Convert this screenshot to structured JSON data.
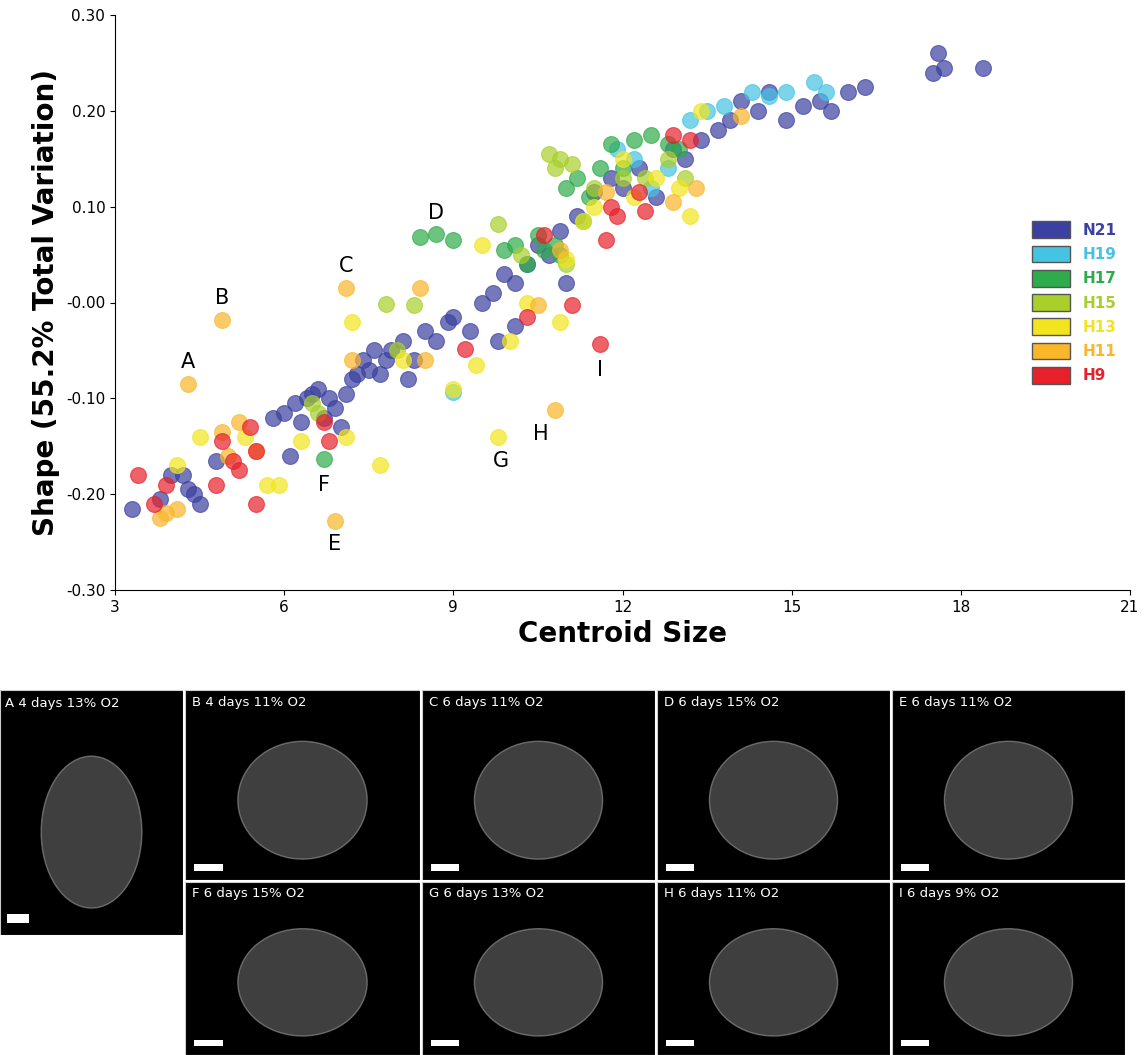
{
  "chart_data": {
    "type": "scatter",
    "x_label": "Centroid Size",
    "y_label": "Shape (55.2% Total Variation)",
    "xlim": [
      3,
      21
    ],
    "xticks": [
      3,
      6,
      9,
      12,
      15,
      18,
      21
    ],
    "ylim": [
      -0.3,
      0.3
    ],
    "yticks": [
      {
        "value": -0.3,
        "label": "-0.30"
      },
      {
        "value": -0.2,
        "label": "-0.20"
      },
      {
        "value": -0.1,
        "label": "-0.10"
      },
      {
        "value": 0.0,
        "label": "-0.00"
      },
      {
        "value": 0.1,
        "label": "0.10"
      },
      {
        "value": 0.2,
        "label": "0.20"
      },
      {
        "value": 0.3,
        "label": "0.30"
      }
    ],
    "legend": "center right",
    "marker": "o",
    "series": [
      {
        "name": "N21",
        "color": "#3b41a0",
        "x": [
          3.3,
          3.8,
          4.0,
          4.2,
          4.3,
          4.5,
          4.4,
          4.8,
          5.8,
          6.0,
          6.1,
          6.2,
          6.4,
          6.5,
          6.6,
          6.7,
          6.8,
          6.9,
          7.0,
          7.1,
          7.2,
          7.3,
          7.4,
          7.5,
          7.6,
          7.8,
          7.9,
          8.1,
          8.2,
          8.3,
          8.5,
          8.7,
          8.9,
          9.0,
          9.3,
          9.5,
          9.7,
          9.9,
          10.1,
          10.3,
          10.5,
          10.7,
          10.9,
          11.0,
          11.2,
          11.5,
          11.8,
          12.0,
          12.3,
          12.6,
          12.9,
          13.1,
          13.4,
          13.7,
          13.9,
          14.1,
          14.4,
          14.6,
          14.9,
          15.2,
          15.5,
          15.7,
          16.0,
          16.3,
          17.5,
          17.6,
          17.7,
          18.4,
          9.8,
          10.1,
          7.7,
          6.3
        ],
        "y": [
          -0.215,
          -0.205,
          -0.18,
          -0.18,
          -0.195,
          -0.21,
          -0.2,
          -0.165,
          -0.12,
          -0.115,
          -0.16,
          -0.105,
          -0.1,
          -0.095,
          -0.09,
          -0.12,
          -0.1,
          -0.11,
          -0.13,
          -0.095,
          -0.08,
          -0.075,
          -0.06,
          -0.07,
          -0.05,
          -0.06,
          -0.05,
          -0.04,
          -0.08,
          -0.06,
          -0.03,
          -0.04,
          -0.02,
          -0.015,
          -0.03,
          0.0,
          0.01,
          0.03,
          0.02,
          0.04,
          0.06,
          0.05,
          0.075,
          0.02,
          0.09,
          0.115,
          0.13,
          0.12,
          0.14,
          0.11,
          0.16,
          0.15,
          0.17,
          0.18,
          0.19,
          0.21,
          0.2,
          0.22,
          0.19,
          0.205,
          0.21,
          0.2,
          0.22,
          0.225,
          0.24,
          0.26,
          0.245,
          0.245,
          -0.04,
          -0.025,
          -0.075,
          -0.125
        ]
      },
      {
        "name": "H19",
        "color": "#45c3e3",
        "x": [
          9.0,
          11.9,
          12.2,
          13.2,
          13.5,
          13.8,
          14.3,
          14.6,
          14.9,
          15.4,
          15.6,
          12.8,
          12.5
        ],
        "y": [
          -0.093,
          0.16,
          0.15,
          0.19,
          0.2,
          0.205,
          0.22,
          0.215,
          0.22,
          0.23,
          0.22,
          0.14,
          0.12
        ]
      },
      {
        "name": "H17",
        "color": "#2eab4a",
        "x": [
          6.7,
          8.4,
          8.7,
          9.0,
          9.9,
          10.1,
          10.3,
          10.5,
          10.6,
          10.8,
          11.0,
          11.2,
          11.4,
          11.6,
          11.8,
          12.0,
          12.2,
          12.5,
          12.8,
          13.0,
          11.3,
          10.9
        ],
        "y": [
          -0.163,
          0.068,
          0.072,
          0.065,
          0.055,
          0.06,
          0.04,
          0.07,
          0.055,
          0.06,
          0.12,
          0.13,
          0.11,
          0.14,
          0.165,
          0.14,
          0.17,
          0.175,
          0.165,
          0.16,
          0.085,
          0.05
        ]
      },
      {
        "name": "H15",
        "color": "#a8cf2a",
        "x": [
          7.8,
          8.3,
          6.5,
          6.6,
          8.0,
          9.8,
          10.2,
          10.7,
          10.9,
          11.1,
          11.5,
          12.4,
          12.8,
          13.1,
          11.0,
          10.8,
          12.0
        ],
        "y": [
          -0.002,
          -0.003,
          -0.105,
          -0.115,
          -0.05,
          0.082,
          0.05,
          0.155,
          0.15,
          0.145,
          0.12,
          0.13,
          0.15,
          0.13,
          0.04,
          0.14,
          0.13
        ]
      },
      {
        "name": "H13",
        "color": "#f2e51d",
        "x": [
          4.1,
          4.5,
          5.3,
          5.7,
          5.9,
          6.3,
          7.1,
          7.2,
          7.7,
          8.1,
          9.0,
          9.4,
          9.5,
          9.8,
          10.0,
          10.3,
          10.9,
          11.0,
          11.3,
          11.5,
          12.2,
          12.6,
          13.0,
          13.4,
          13.2,
          12.0
        ],
        "y": [
          -0.17,
          -0.14,
          -0.14,
          -0.19,
          -0.19,
          -0.145,
          -0.14,
          -0.02,
          -0.17,
          -0.06,
          -0.09,
          -0.065,
          0.06,
          -0.14,
          -0.04,
          0.0,
          -0.02,
          0.045,
          0.085,
          0.1,
          0.11,
          0.13,
          0.12,
          0.2,
          0.09,
          0.15
        ]
      },
      {
        "name": "H11",
        "color": "#fbb62a",
        "x": [
          4.3,
          4.9,
          7.1,
          6.9,
          10.8,
          3.8,
          3.9,
          4.1,
          4.9,
          5.2,
          5.5,
          5.0,
          8.4,
          7.2,
          8.5,
          10.5,
          11.7,
          12.9,
          13.3,
          14.1,
          10.9
        ],
        "y": [
          -0.085,
          -0.018,
          0.015,
          -0.228,
          -0.112,
          -0.225,
          -0.22,
          -0.215,
          -0.135,
          -0.125,
          -0.155,
          -0.16,
          0.015,
          -0.06,
          -0.06,
          -0.003,
          0.115,
          0.105,
          0.12,
          0.195,
          0.055
        ]
      },
      {
        "name": "H9",
        "color": "#e8202a",
        "x": [
          3.4,
          3.7,
          3.9,
          4.8,
          4.9,
          5.1,
          5.2,
          5.4,
          5.5,
          5.5,
          6.7,
          6.8,
          9.2,
          10.3,
          10.6,
          11.1,
          11.6,
          11.7,
          11.8,
          11.9,
          12.4,
          12.3,
          12.9,
          13.2
        ],
        "y": [
          -0.18,
          -0.21,
          -0.19,
          -0.19,
          -0.145,
          -0.165,
          -0.175,
          -0.13,
          -0.155,
          -0.21,
          -0.125,
          -0.145,
          -0.048,
          -0.015,
          0.07,
          -0.003,
          -0.043,
          0.065,
          0.1,
          0.09,
          0.095,
          0.115,
          0.175,
          0.17
        ]
      }
    ],
    "annotations": [
      {
        "text": "A",
        "x": 4.3,
        "y": -0.062
      },
      {
        "text": "B",
        "x": 4.9,
        "y": 0.005
      },
      {
        "text": "C",
        "x": 7.1,
        "y": 0.038
      },
      {
        "text": "D",
        "x": 8.7,
        "y": 0.093
      },
      {
        "text": "E",
        "x": 6.9,
        "y": -0.252
      },
      {
        "text": "F",
        "x": 6.7,
        "y": -0.19
      },
      {
        "text": "G",
        "x": 9.85,
        "y": -0.165
      },
      {
        "text": "H",
        "x": 10.55,
        "y": -0.137
      },
      {
        "text": "I",
        "x": 11.6,
        "y": -0.07
      }
    ]
  },
  "panels": [
    "A 4 days 13% O2",
    "B 4 days 11% O2",
    "C 6 days 11% O2",
    "D 6 days 15% O2",
    "E 6 days 11% O2",
    "F 6 days 15% O2",
    "G 6 days 13% O2",
    "H 6 days 11% O2",
    "I 6 days 9% O2"
  ]
}
